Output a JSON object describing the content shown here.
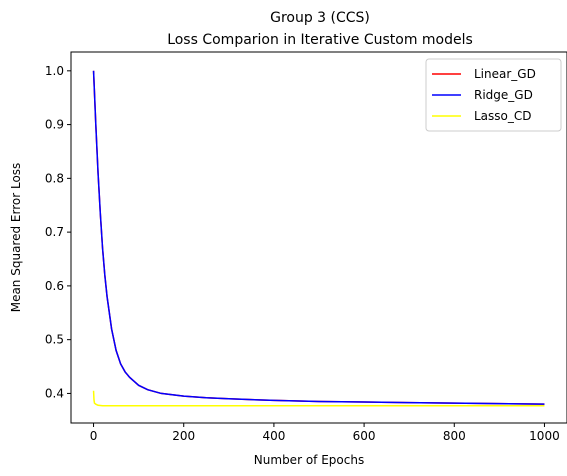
{
  "chart_data": {
    "type": "line",
    "title": "Group 3 (CCS)",
    "subtitle": "Loss Comparion in Iterative Custom models",
    "xlabel": "Number of Epochs",
    "ylabel": "Mean Squared Error Loss",
    "xlim": [
      -50,
      1050
    ],
    "ylim": [
      0.345,
      1.035
    ],
    "xticks": [
      0,
      200,
      400,
      600,
      800,
      1000
    ],
    "xtick_labels": [
      "0",
      "200",
      "400",
      "600",
      "800",
      "1000"
    ],
    "yticks": [
      0.4,
      0.5,
      0.6,
      0.7,
      0.8,
      0.9,
      1.0
    ],
    "ytick_labels": [
      "0.4",
      "0.5",
      "0.6",
      "0.7",
      "0.8",
      "0.9",
      "1.0"
    ],
    "grid": false,
    "legend": "top-right",
    "series": [
      {
        "name": "Linear_GD",
        "color": "#ff0000",
        "x": [
          0,
          5,
          10,
          15,
          20,
          25,
          30,
          40,
          50,
          60,
          70,
          80,
          100,
          120,
          150,
          200,
          250,
          300,
          400,
          500,
          600,
          700,
          800,
          900,
          1000
        ],
        "y": [
          1.0,
          0.9,
          0.81,
          0.735,
          0.67,
          0.62,
          0.58,
          0.52,
          0.48,
          0.455,
          0.44,
          0.43,
          0.415,
          0.407,
          0.4,
          0.395,
          0.392,
          0.39,
          0.387,
          0.385,
          0.384,
          0.383,
          0.382,
          0.381,
          0.38
        ]
      },
      {
        "name": "Ridge_GD",
        "color": "#0000ff",
        "x": [
          0,
          5,
          10,
          15,
          20,
          25,
          30,
          40,
          50,
          60,
          70,
          80,
          100,
          120,
          150,
          200,
          250,
          300,
          400,
          500,
          600,
          700,
          800,
          900,
          1000
        ],
        "y": [
          1.0,
          0.9,
          0.81,
          0.735,
          0.67,
          0.62,
          0.58,
          0.52,
          0.48,
          0.455,
          0.44,
          0.43,
          0.415,
          0.407,
          0.4,
          0.395,
          0.392,
          0.39,
          0.387,
          0.385,
          0.384,
          0.383,
          0.382,
          0.381,
          0.38
        ]
      },
      {
        "name": "Lasso_CD",
        "color": "#ffff00",
        "x": [
          0,
          1,
          2,
          5,
          10,
          20,
          30,
          50,
          100,
          200,
          400,
          600,
          800,
          1000
        ],
        "y": [
          0.405,
          0.388,
          0.382,
          0.38,
          0.378,
          0.377,
          0.377,
          0.377,
          0.377,
          0.377,
          0.377,
          0.377,
          0.377,
          0.377
        ]
      }
    ]
  }
}
